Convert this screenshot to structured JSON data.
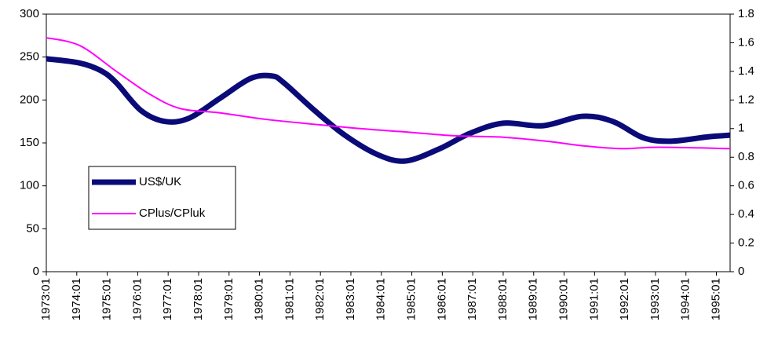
{
  "chart_data": {
    "type": "line",
    "xlim": [
      1973,
      1995.45
    ],
    "xticks": [
      {
        "value": 1973,
        "label": "1973:01"
      },
      {
        "value": 1974,
        "label": "1974:01"
      },
      {
        "value": 1975,
        "label": "1975:01"
      },
      {
        "value": 1976,
        "label": "1976:01"
      },
      {
        "value": 1977,
        "label": "1977:01"
      },
      {
        "value": 1978,
        "label": "1978:01"
      },
      {
        "value": 1979,
        "label": "1979:01"
      },
      {
        "value": 1980,
        "label": "1980:01"
      },
      {
        "value": 1981,
        "label": "1981:01"
      },
      {
        "value": 1982,
        "label": "1982:01"
      },
      {
        "value": 1983,
        "label": "1983:01"
      },
      {
        "value": 1984,
        "label": "1984:01"
      },
      {
        "value": 1985,
        "label": "1985:01"
      },
      {
        "value": 1986,
        "label": "1986:01"
      },
      {
        "value": 1987,
        "label": "1987:01"
      },
      {
        "value": 1988,
        "label": "1988:01"
      },
      {
        "value": 1989,
        "label": "1989:01"
      },
      {
        "value": 1990,
        "label": "1990:01"
      },
      {
        "value": 1991,
        "label": "1991:01"
      },
      {
        "value": 1992,
        "label": "1992:01"
      },
      {
        "value": 1993,
        "label": "1993:01"
      },
      {
        "value": 1994,
        "label": "1994:01"
      },
      {
        "value": 1995,
        "label": "1995:01"
      }
    ],
    "ylim": [
      0,
      300
    ],
    "yticks": [
      0,
      50,
      100,
      150,
      200,
      250,
      300
    ],
    "y2lim": [
      0,
      1.8
    ],
    "y2ticks": [
      0,
      0.2,
      0.4,
      0.6,
      0.8,
      1,
      1.2,
      1.4,
      1.6,
      1.8
    ],
    "series": [
      {
        "name": "US$/UK",
        "color": "#0a0a78",
        "axis": "y",
        "x": [
          1973,
          1974.1,
          1974.8,
          1975.3,
          1976.1,
          1976.9,
          1977.7,
          1978.7,
          1979.7,
          1980.4,
          1980.8,
          1981.8,
          1982.8,
          1983.9,
          1984.8,
          1985.9,
          1986.9,
          1988,
          1989.3,
          1990.6,
          1991.6,
          1992.6,
          1993.5,
          1994.7,
          1995.45
        ],
        "values": [
          248,
          243,
          234,
          220,
          188,
          175,
          179,
          202,
          225,
          228,
          220,
          188,
          159,
          136,
          129,
          143,
          161,
          173,
          170,
          181,
          175,
          156,
          152,
          157,
          159
        ]
      },
      {
        "name": "CPlus/CPluk",
        "color": "#ff00ff",
        "axis": "y2",
        "x": [
          1973,
          1974.1,
          1975.3,
          1976.4,
          1977.4,
          1978.7,
          1980.2,
          1981.8,
          1983.3,
          1984.9,
          1986.4,
          1988,
          1989.5,
          1990.6,
          1991.9,
          1993.1,
          1995.45
        ],
        "values": [
          1.635,
          1.58,
          1.4,
          1.24,
          1.14,
          1.11,
          1.065,
          1.03,
          1.0,
          0.975,
          0.95,
          0.94,
          0.91,
          0.88,
          0.86,
          0.87,
          0.86
        ]
      }
    ],
    "legend": "left"
  }
}
